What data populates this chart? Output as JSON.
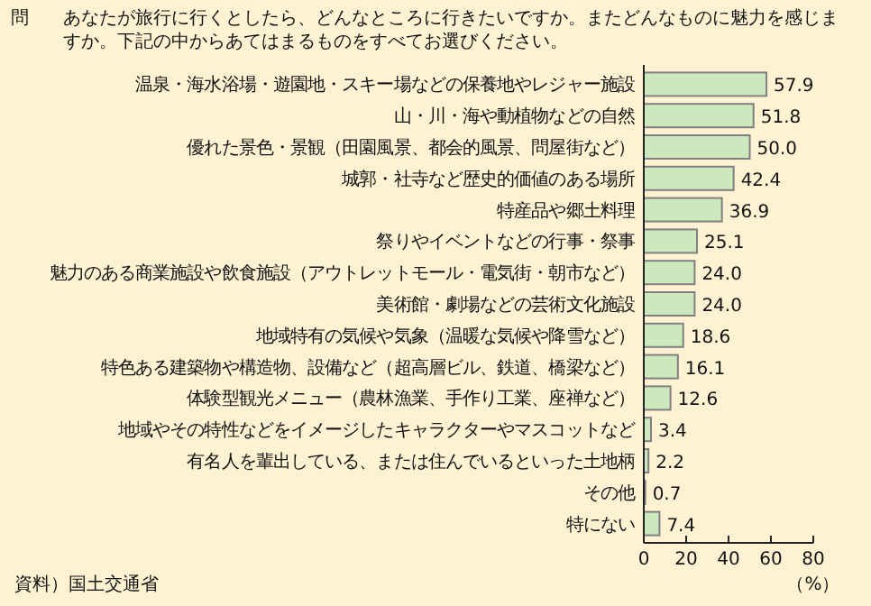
{
  "chart_data": {
    "type": "bar",
    "orientation": "horizontal",
    "title": "あなたが旅行に行くとしたら、どんなところに行きたいですか。またどんなものに魅力を感じますか。下記の中からあてはまるものをすべてお選びください。",
    "annotations": [
      "問",
      "資料）国土交通省"
    ],
    "xlabel": "（%）",
    "categories": [
      "温泉・海水浴場・遊園地・スキー場などの保養地やレジャー施設",
      "山・川・海や動植物などの自然",
      "優れた景色・景観（田園風景、都会的風景、問屋街など）",
      "城郭・社寺など歴史的価値のある場所",
      "特産品や郷土料理",
      "祭りやイベントなどの行事・祭事",
      "魅力のある商業施設や飲食施設（アウトレットモール・電気街・朝市など）",
      "美術館・劇場などの芸術文化施設",
      "地域特有の気候や気象（温暖な気候や降雪など）",
      "特色ある建築物や構造物、設備など（超高層ビル、鉄道、橋梁など）",
      "体験型観光メニュー（農林漁業、手作り工業、座禅など）",
      "地域やその特性などをイメージしたキャラクターやマスコットなど",
      "有名人を輩出している、または住んでいるといった土地柄",
      "その他",
      "特にない"
    ],
    "values": [
      57.9,
      51.8,
      50.0,
      42.4,
      36.9,
      25.1,
      24.0,
      24.0,
      18.6,
      16.1,
      12.6,
      3.4,
      2.2,
      0.7,
      7.4
    ],
    "value_labels": [
      "57.9",
      "51.8",
      "50.0",
      "42.4",
      "36.9",
      "25.1",
      "24.0",
      "24.0",
      "18.6",
      "16.1",
      "12.6",
      "3.4",
      "2.2",
      "0.7",
      "7.4"
    ],
    "color": "#cde8bc",
    "xlim": [
      0,
      80
    ],
    "xticks": [
      0,
      20,
      40,
      60,
      80
    ]
  }
}
